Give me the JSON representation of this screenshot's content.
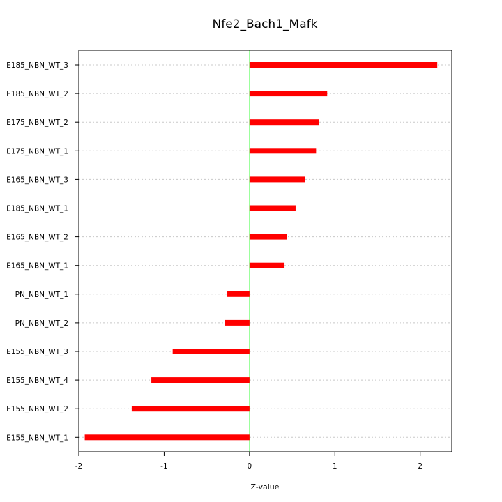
{
  "chart_data": {
    "type": "bar",
    "orientation": "horizontal",
    "title": "Nfe2_Bach1_Mafk",
    "xlabel": "Z-value",
    "ylabel": "",
    "xlim": [
      -2.0,
      2.37
    ],
    "xticks": [
      -2,
      -1,
      0,
      1,
      2
    ],
    "xtick_labels": [
      "-2",
      "-1",
      "0",
      "1",
      "2"
    ],
    "reference_line": 0,
    "grid": "horizontal dotted",
    "bar_color": "#ff0000",
    "reference_line_color": "#66ff66",
    "categories": [
      "E185_NBN_WT_3",
      "E185_NBN_WT_2",
      "E175_NBN_WT_2",
      "E175_NBN_WT_1",
      "E165_NBN_WT_3",
      "E185_NBN_WT_1",
      "E165_NBN_WT_2",
      "E165_NBN_WT_1",
      "PN_NBN_WT_1",
      "PN_NBN_WT_2",
      "E155_NBN_WT_3",
      "E155_NBN_WT_4",
      "E155_NBN_WT_2",
      "E155_NBN_WT_1"
    ],
    "values": [
      2.2,
      0.91,
      0.81,
      0.78,
      0.65,
      0.54,
      0.44,
      0.41,
      -0.26,
      -0.29,
      -0.9,
      -1.15,
      -1.38,
      -1.93
    ]
  }
}
